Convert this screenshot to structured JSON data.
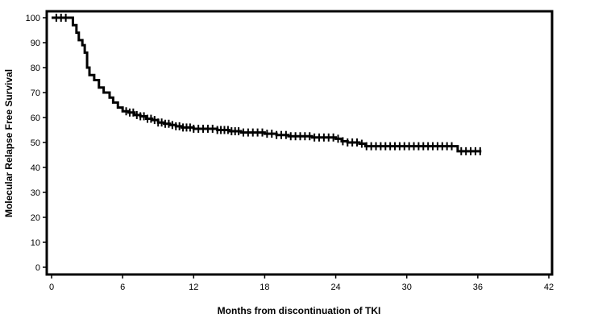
{
  "chart_data": {
    "type": "line",
    "title": "",
    "xlabel": "Months from discontinuation of TKI",
    "ylabel": "Molecular Relapse Free Survival",
    "xlim": [
      0,
      42
    ],
    "ylim": [
      0,
      100
    ],
    "x_ticks": [
      0,
      6,
      12,
      18,
      24,
      30,
      36,
      42
    ],
    "y_ticks": [
      0,
      10,
      20,
      30,
      40,
      50,
      60,
      70,
      80,
      90,
      100
    ],
    "grid": false,
    "legend": "none",
    "line_color": "#000000",
    "series": [
      {
        "step": true,
        "points": [
          [
            0,
            100
          ],
          [
            1.6,
            100
          ],
          [
            1.8,
            97
          ],
          [
            2.1,
            94
          ],
          [
            2.3,
            91
          ],
          [
            2.6,
            89
          ],
          [
            2.8,
            86
          ],
          [
            3.0,
            80
          ],
          [
            3.2,
            77
          ],
          [
            3.6,
            75
          ],
          [
            4.0,
            72
          ],
          [
            4.4,
            70
          ],
          [
            4.9,
            68
          ],
          [
            5.2,
            66
          ],
          [
            5.6,
            64
          ],
          [
            6.0,
            62.5
          ],
          [
            6.5,
            62
          ],
          [
            7.0,
            61
          ],
          [
            7.5,
            60.5
          ],
          [
            8.0,
            59.5
          ],
          [
            8.5,
            59
          ],
          [
            9.0,
            58
          ],
          [
            9.5,
            57.5
          ],
          [
            10.0,
            57
          ],
          [
            10.5,
            56.5
          ],
          [
            11.0,
            56
          ],
          [
            12.0,
            55.5
          ],
          [
            13.0,
            55.5
          ],
          [
            14.0,
            55
          ],
          [
            15.0,
            54.5
          ],
          [
            16.0,
            54
          ],
          [
            17.0,
            54
          ],
          [
            18.0,
            53.5
          ],
          [
            19.0,
            53
          ],
          [
            20.0,
            52.5
          ],
          [
            22.0,
            52
          ],
          [
            24.0,
            51.5
          ],
          [
            24.5,
            50.5
          ],
          [
            25.0,
            50
          ],
          [
            26.0,
            49.5
          ],
          [
            26.5,
            48.5
          ],
          [
            30.0,
            48.5
          ],
          [
            34.0,
            48.5
          ],
          [
            34.3,
            46.5
          ],
          [
            36.3,
            46.5
          ]
        ],
        "censor_x": [
          0.4,
          0.8,
          1.2,
          6.3,
          6.6,
          6.9,
          7.2,
          7.5,
          7.8,
          8.1,
          8.4,
          8.7,
          9.0,
          9.3,
          9.6,
          9.9,
          10.2,
          10.5,
          10.8,
          11.1,
          11.4,
          11.7,
          12.0,
          12.4,
          12.8,
          13.2,
          13.6,
          14.0,
          14.3,
          14.6,
          14.9,
          15.2,
          15.5,
          15.8,
          16.2,
          16.6,
          17.0,
          17.4,
          17.8,
          18.2,
          18.6,
          19.0,
          19.4,
          19.8,
          20.2,
          20.6,
          21.0,
          21.4,
          21.8,
          22.2,
          22.6,
          23.0,
          23.4,
          23.8,
          24.2,
          24.6,
          25.0,
          25.4,
          25.8,
          26.2,
          26.6,
          27.0,
          27.4,
          27.8,
          28.2,
          28.6,
          29.0,
          29.4,
          29.8,
          30.2,
          30.6,
          31.0,
          31.4,
          31.8,
          32.2,
          32.6,
          33.0,
          33.4,
          33.8,
          34.6,
          35.0,
          35.4,
          35.8,
          36.2
        ]
      }
    ]
  }
}
